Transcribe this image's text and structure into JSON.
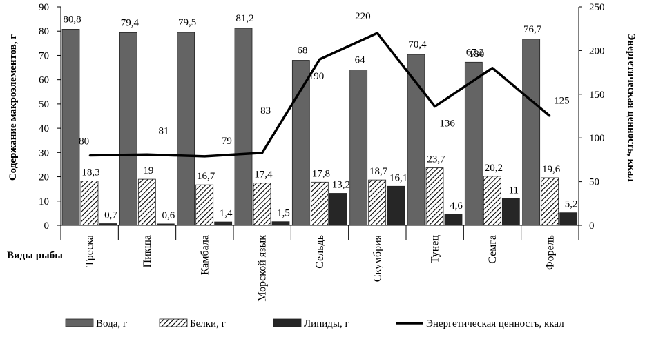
{
  "chart_data": {
    "type": "bar",
    "categories": [
      "Треска",
      "Пикша",
      "Камбала",
      "Морской язык",
      "Сельдь",
      "Скумбрия",
      "Тунец",
      "Семга",
      "Форель"
    ],
    "category_axis_title": "Виды рыбы",
    "ylabel": "Содержание макроэлементов, г",
    "y2label": "Энергетическая ценность, ккал",
    "ylim": [
      0,
      90
    ],
    "y2lim": [
      0,
      250
    ],
    "yticks": [
      "0",
      "10",
      "20",
      "30",
      "40",
      "50",
      "60",
      "70",
      "80",
      "90"
    ],
    "y2ticks": [
      "0",
      "50",
      "100",
      "150",
      "200",
      "250"
    ],
    "legend_position": "bottom",
    "series": [
      {
        "name": "Вода, г",
        "type": "bar",
        "axis": "left",
        "color": "#646464",
        "pattern": "solid",
        "values": [
          80.8,
          79.4,
          79.5,
          81.2,
          68,
          64,
          70.4,
          67.2,
          76.7
        ],
        "labels": [
          "80,8",
          "79,4",
          "79,5",
          "81,2",
          "68",
          "64",
          "70,4",
          "67,2",
          "76,7"
        ]
      },
      {
        "name": "Белки, г",
        "type": "bar",
        "axis": "left",
        "color": "#000000",
        "pattern": "diagonal-hatch",
        "values": [
          18.3,
          19,
          16.7,
          17.4,
          17.8,
          18.7,
          23.7,
          20.2,
          19.6
        ],
        "labels": [
          "18,3",
          "19",
          "16,7",
          "17,4",
          "17,8",
          "18,7",
          "23,7",
          "20,2",
          "19,6"
        ]
      },
      {
        "name": "Липиды, г",
        "type": "bar",
        "axis": "left",
        "color": "#262626",
        "pattern": "solid",
        "values": [
          0.7,
          0.6,
          1.4,
          1.5,
          13.2,
          16.1,
          4.6,
          11,
          5.2
        ],
        "labels": [
          "0,7",
          "0,6",
          "1,4",
          "1,5",
          "13,2",
          "16,1",
          "4,6",
          "11",
          "5,2"
        ]
      },
      {
        "name": "Энергетическая ценность, ккал",
        "type": "line",
        "axis": "right",
        "color": "#000000",
        "values": [
          80,
          81,
          79,
          83,
          190,
          220,
          136,
          180,
          125
        ],
        "labels": [
          "80",
          "81",
          "79",
          "83",
          "190",
          "220",
          "136",
          "180",
          "125"
        ]
      }
    ]
  }
}
